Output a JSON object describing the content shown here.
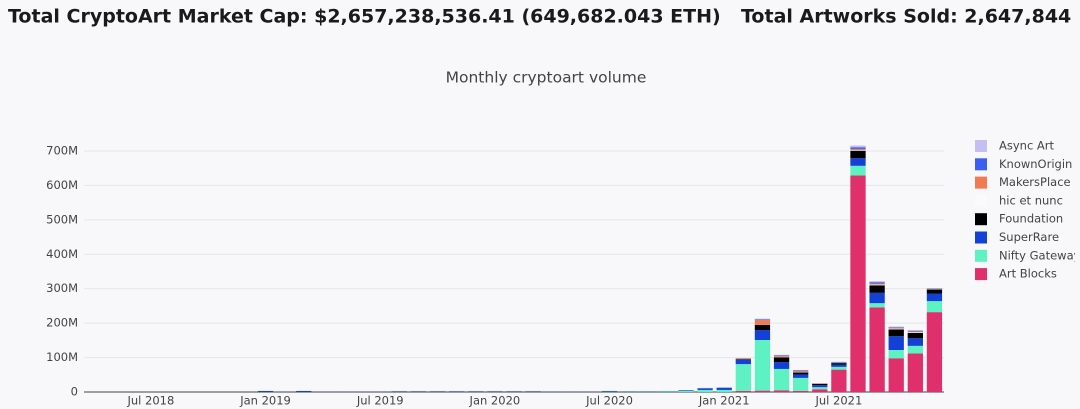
{
  "header": {
    "market_cap": "Total CryptoArt Market Cap: $2,657,238,536.41 (649,682.043 ETH)",
    "artworks_sold": "Total Artworks Sold: 2,647,844"
  },
  "chart_data": {
    "type": "stacked_bar",
    "title": "Monthly cryptoart volume",
    "categories": [
      null,
      null,
      null,
      "Jul 2018",
      null,
      null,
      null,
      null,
      null,
      "Jan 2019",
      null,
      null,
      null,
      null,
      null,
      "Jul 2019",
      null,
      null,
      null,
      null,
      null,
      "Jan 2020",
      null,
      null,
      null,
      null,
      null,
      "Jul 2020",
      null,
      null,
      null,
      null,
      null,
      "Jan 2021",
      null,
      null,
      null,
      null,
      null,
      "Jul 2021",
      null,
      null,
      null,
      null,
      null
    ],
    "ylim": [
      0,
      730000000
    ],
    "yticks": [
      0,
      {
        "value": 100000000,
        "label": "100M"
      },
      {
        "value": 200000000,
        "label": "200M"
      },
      {
        "value": 300000000,
        "label": "300M"
      },
      {
        "value": 400000000,
        "label": "400M"
      },
      {
        "value": 500000000,
        "label": "500M"
      },
      {
        "value": 600000000,
        "label": "600M"
      },
      {
        "value": 700000000,
        "label": "700M"
      }
    ],
    "grid": true,
    "legend": "right",
    "series": [
      {
        "name": "Async Art",
        "color": "#c4bff2",
        "values": [
          0,
          0,
          0,
          0,
          0,
          0,
          0,
          0,
          0,
          0,
          0,
          0,
          0,
          0,
          0,
          0,
          0,
          0,
          0,
          0,
          0,
          0,
          0,
          0,
          0,
          0,
          0,
          0,
          0,
          0,
          0,
          0,
          1000000,
          0,
          0,
          2000000,
          1000000,
          1000000,
          0,
          1000000,
          5000000,
          3000000,
          2000000,
          2000000,
          1000000
        ]
      },
      {
        "name": "KnownOrigin",
        "color": "#3b5ff0",
        "values": [
          0,
          0,
          0,
          0,
          0,
          0,
          0,
          0,
          0,
          0,
          0,
          0,
          0,
          0,
          0,
          0,
          0,
          0,
          0,
          0,
          0,
          0,
          0,
          0,
          0,
          0,
          0,
          0,
          0,
          0,
          0,
          0,
          0,
          1000000,
          1000000,
          2000000,
          2000000,
          2000000,
          0,
          2000000,
          5000000,
          4000000,
          2000000,
          2000000,
          1000000
        ]
      },
      {
        "name": "MakersPlace",
        "color": "#f07a52",
        "values": [
          0,
          0,
          0,
          0,
          0,
          0,
          0,
          0,
          0,
          0,
          0,
          0,
          0,
          0,
          0,
          0,
          0,
          0,
          0,
          0,
          0,
          0,
          0,
          0,
          0,
          0,
          0,
          0,
          0,
          0,
          0,
          0,
          0,
          0,
          2000000,
          14000000,
          3000000,
          3000000,
          1000000,
          0,
          3000000,
          3000000,
          2000000,
          2000000,
          1000000
        ]
      },
      {
        "name": "hic et nunc",
        "color": "#fafafa",
        "values": [
          0,
          0,
          0,
          0,
          0,
          0,
          0,
          0,
          0,
          0,
          0,
          0,
          0,
          0,
          0,
          0,
          0,
          0,
          0,
          0,
          0,
          0,
          0,
          0,
          0,
          0,
          0,
          0,
          0,
          0,
          0,
          0,
          0,
          0,
          0,
          0,
          1000000,
          1000000,
          1000000,
          1000000,
          2000000,
          2000000,
          2000000,
          2000000,
          1000000
        ]
      },
      {
        "name": "Foundation",
        "color": "#000000",
        "values": [
          0,
          0,
          0,
          0,
          0,
          0,
          0,
          0,
          0,
          0,
          0,
          0,
          0,
          0,
          0,
          0,
          0,
          0,
          0,
          0,
          0,
          0,
          0,
          0,
          0,
          0,
          0,
          0,
          0,
          0,
          0,
          0,
          0,
          0,
          2000000,
          15000000,
          14000000,
          6000000,
          4000000,
          5000000,
          22000000,
          22000000,
          20000000,
          16000000,
          12000000
        ]
      },
      {
        "name": "SuperRare",
        "color": "#1340d6",
        "values": [
          0,
          0,
          0,
          0,
          0,
          0,
          0,
          0,
          0,
          3000000,
          1000000,
          3000000,
          500000,
          500000,
          500000,
          1000000,
          2000000,
          2000000,
          2000000,
          2000000,
          2000000,
          2000000,
          2000000,
          2000000,
          1000000,
          1000000,
          1000000,
          2000000,
          1000000,
          1000000,
          1000000,
          2000000,
          5000000,
          6000000,
          12000000,
          29000000,
          20000000,
          10000000,
          6000000,
          6000000,
          22000000,
          30000000,
          40000000,
          22000000,
          22000000
        ]
      },
      {
        "name": "Nifty Gateway",
        "color": "#5ef2c2",
        "values": [
          0,
          0,
          0,
          0,
          0,
          0,
          0,
          0,
          0,
          0,
          0,
          0,
          0,
          0,
          0,
          0,
          0,
          0,
          0,
          0,
          0,
          0,
          0,
          0,
          0,
          0,
          0,
          1000000,
          1000000,
          1000000,
          2000000,
          3000000,
          6000000,
          6000000,
          78000000,
          147000000,
          62000000,
          38000000,
          6000000,
          8000000,
          28000000,
          12000000,
          24000000,
          22000000,
          32000000
        ]
      },
      {
        "name": "Art Blocks",
        "color": "#e0306b",
        "values": [
          0,
          0,
          0,
          0,
          0,
          0,
          0,
          0,
          0,
          0,
          0,
          0,
          0,
          0,
          0,
          0,
          0,
          0,
          0,
          0,
          0,
          0,
          0,
          0,
          0,
          0,
          0,
          0,
          0,
          0,
          0,
          0,
          0,
          0,
          3000000,
          4000000,
          5000000,
          3000000,
          8000000,
          65000000,
          629000000,
          246000000,
          98000000,
          112000000,
          232000000
        ]
      }
    ]
  }
}
